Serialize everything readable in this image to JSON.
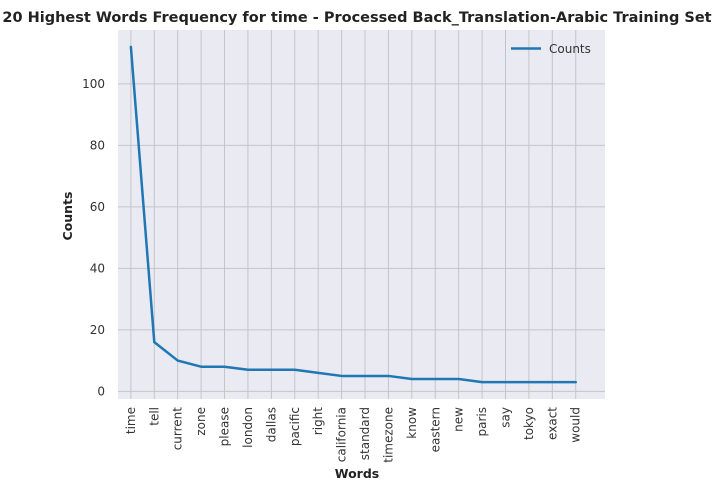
{
  "chart_data": {
    "type": "line",
    "title": "20 Highest Words Frequency for time - Processed Back_Translation-Arabic Training Set",
    "xlabel": "Words",
    "ylabel": "Counts",
    "categories": [
      "time",
      "tell",
      "current",
      "zone",
      "please",
      "london",
      "dallas",
      "pacific",
      "right",
      "california",
      "standard",
      "timezone",
      "know",
      "eastern",
      "new",
      "paris",
      "say",
      "tokyo",
      "exact",
      "would"
    ],
    "series": [
      {
        "name": "Counts",
        "color": "#1f77b4",
        "values": [
          112,
          16,
          10,
          8,
          8,
          7,
          7,
          7,
          6,
          5,
          5,
          5,
          4,
          4,
          4,
          3,
          3,
          3,
          3,
          3
        ]
      }
    ],
    "yticks": [
      0,
      20,
      40,
      60,
      80,
      100
    ],
    "ylim": [
      -2.5,
      117.5
    ],
    "grid": true,
    "background": "#eaeaf2",
    "legend_position": "top-right"
  }
}
